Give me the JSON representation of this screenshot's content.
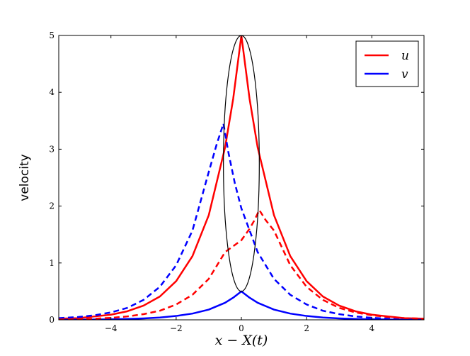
{
  "chart_data": {
    "type": "line",
    "title": "",
    "xlabel": "x − X(t)",
    "ylabel": "velocity",
    "xlim": [
      -5.6,
      5.6
    ],
    "ylim": [
      0,
      5
    ],
    "xticks": [
      -4,
      -2,
      0,
      2,
      4
    ],
    "xtick_labels": [
      "−4",
      "−2",
      "0",
      "2",
      "4"
    ],
    "yticks": [
      0,
      1,
      2,
      3,
      4,
      5
    ],
    "ytick_labels": [
      "0",
      "1",
      "2",
      "3",
      "4",
      "5"
    ],
    "grid": false,
    "legend": {
      "position": "top-right",
      "entries": [
        "u",
        "v"
      ]
    },
    "series": [
      {
        "name": "u",
        "color": "#ff0000",
        "style": "solid",
        "x": [
          -5.6,
          -5.0,
          -4.5,
          -4.0,
          -3.5,
          -3.0,
          -2.5,
          -2.0,
          -1.5,
          -1.0,
          -0.5,
          -0.25,
          0.0,
          0.25,
          0.5,
          1.0,
          1.5,
          2.0,
          2.5,
          3.0,
          3.5,
          4.0,
          4.5,
          5.0,
          5.6
        ],
        "y": [
          0.02,
          0.03,
          0.06,
          0.09,
          0.15,
          0.25,
          0.41,
          0.68,
          1.12,
          1.84,
          3.03,
          3.89,
          5.0,
          3.89,
          3.03,
          1.84,
          1.12,
          0.68,
          0.41,
          0.25,
          0.15,
          0.09,
          0.06,
          0.03,
          0.02
        ]
      },
      {
        "name": "v",
        "color": "#0000ff",
        "style": "solid",
        "x": [
          -5.6,
          -5.0,
          -4.5,
          -4.0,
          -3.5,
          -3.0,
          -2.5,
          -2.0,
          -1.5,
          -1.0,
          -0.5,
          -0.25,
          0.0,
          0.25,
          0.5,
          1.0,
          1.5,
          2.0,
          2.5,
          3.0,
          3.5,
          4.0,
          4.5,
          5.0,
          5.6
        ],
        "y": [
          0.002,
          0.003,
          0.006,
          0.009,
          0.015,
          0.025,
          0.041,
          0.068,
          0.11,
          0.18,
          0.3,
          0.39,
          0.5,
          0.39,
          0.3,
          0.18,
          0.11,
          0.068,
          0.041,
          0.025,
          0.015,
          0.009,
          0.006,
          0.003,
          0.002
        ]
      },
      {
        "name": "",
        "color": "#0000ff",
        "style": "dashed",
        "x": [
          -5.6,
          -5.0,
          -4.5,
          -4.0,
          -3.5,
          -3.0,
          -2.5,
          -2.0,
          -1.5,
          -1.0,
          -0.75,
          -0.55,
          -0.4,
          -0.2,
          0.0,
          0.5,
          1.0,
          1.5,
          2.0,
          2.5,
          3.0,
          3.5,
          4.0,
          4.5,
          5.0,
          5.6
        ],
        "y": [
          0.03,
          0.05,
          0.08,
          0.13,
          0.21,
          0.35,
          0.58,
          0.96,
          1.57,
          2.6,
          3.1,
          3.45,
          2.95,
          2.4,
          1.96,
          1.19,
          0.72,
          0.44,
          0.27,
          0.16,
          0.1,
          0.06,
          0.035,
          0.02,
          0.013,
          0.007
        ]
      },
      {
        "name": "",
        "color": "#ff0000",
        "style": "dashed",
        "x": [
          -5.6,
          -5.0,
          -4.5,
          -4.0,
          -3.5,
          -3.0,
          -2.5,
          -2.0,
          -1.5,
          -1.0,
          -0.5,
          0.0,
          0.25,
          0.4,
          0.55,
          0.75,
          1.0,
          1.5,
          2.0,
          2.5,
          3.0,
          3.5,
          4.0,
          4.5,
          5.0,
          5.6
        ],
        "y": [
          0.007,
          0.013,
          0.02,
          0.035,
          0.06,
          0.1,
          0.16,
          0.27,
          0.44,
          0.72,
          1.19,
          1.4,
          1.6,
          1.75,
          1.93,
          1.75,
          1.57,
          0.96,
          0.58,
          0.35,
          0.21,
          0.13,
          0.08,
          0.05,
          0.03,
          0.02
        ]
      }
    ],
    "ellipse": {
      "color": "#000000",
      "cx": 0.0,
      "cy": 2.75,
      "rx": 0.55,
      "ry": 2.25
    }
  }
}
